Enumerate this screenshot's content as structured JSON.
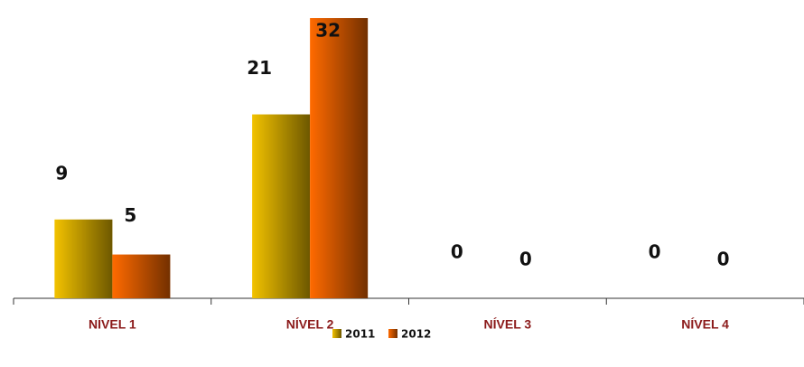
{
  "chart_data": {
    "type": "bar",
    "categories": [
      "NÍVEL 1",
      "NÍVEL 2",
      "NÍVEL 3",
      "NÍVEL 4"
    ],
    "series": [
      {
        "name": "2011",
        "color": "#f2c200",
        "values": [
          9,
          21,
          0,
          0
        ]
      },
      {
        "name": "2012",
        "color": "#ff6a00",
        "values": [
          5,
          32,
          0,
          0
        ]
      }
    ],
    "ylim": [
      0,
      32
    ]
  }
}
